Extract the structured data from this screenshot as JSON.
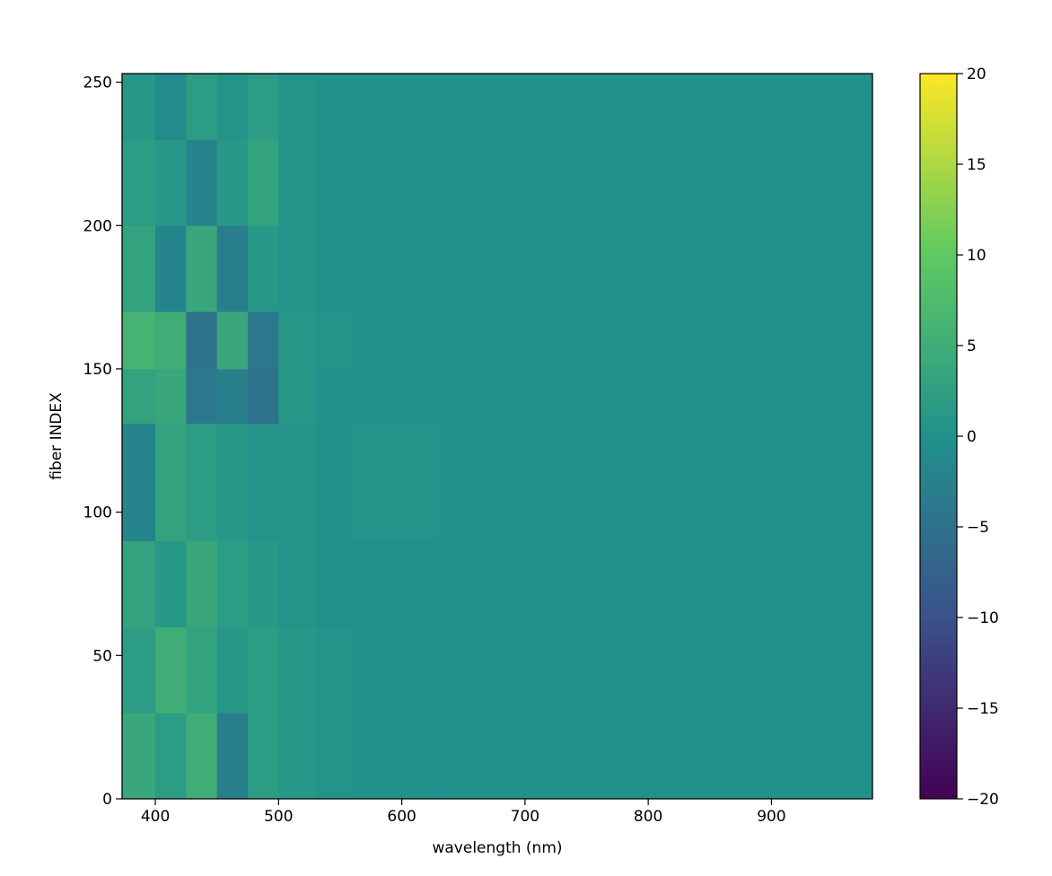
{
  "chart_data": {
    "type": "heatmap",
    "xlabel": "wavelength (nm)",
    "ylabel": "fiber INDEX",
    "xlim": [
      373,
      982
    ],
    "ylim": [
      0,
      253
    ],
    "xticks": [
      400,
      500,
      600,
      700,
      800,
      900
    ],
    "yticks": [
      0,
      50,
      100,
      150,
      200,
      250
    ],
    "xbins": [
      373,
      400,
      425,
      450,
      475,
      500,
      530,
      560,
      630,
      982
    ],
    "ybins": [
      0,
      30,
      60,
      90,
      131,
      150,
      170,
      200,
      230,
      253
    ],
    "z": [
      [
        4,
        2,
        5,
        -3,
        2,
        1,
        0.5,
        0,
        0
      ],
      [
        2,
        5,
        3,
        1,
        2,
        1,
        0.5,
        0,
        0
      ],
      [
        3,
        1,
        4,
        2,
        1,
        0.5,
        0,
        0,
        0
      ],
      [
        -2,
        3,
        2,
        1,
        0.5,
        0.5,
        0,
        0.5,
        0
      ],
      [
        3,
        4,
        -4,
        -3,
        -5,
        1,
        0,
        0,
        0
      ],
      [
        6,
        5,
        -5,
        4,
        -4,
        1,
        0.5,
        0,
        0
      ],
      [
        3,
        -2,
        4,
        -3,
        1,
        0.5,
        0,
        0,
        0
      ],
      [
        2,
        1,
        -2,
        1,
        3,
        0.5,
        0,
        0,
        0
      ],
      [
        1,
        -1,
        2,
        0.5,
        2,
        0.5,
        0,
        0,
        0
      ]
    ],
    "colormap": [
      "#440154",
      "#3b528b",
      "#21918c",
      "#5ec962",
      "#fde725"
    ],
    "clim": [
      -20,
      20
    ],
    "cticks": [
      {
        "value": -20,
        "label": "−20"
      },
      {
        "value": -15,
        "label": "−15"
      },
      {
        "value": -10,
        "label": "−10"
      },
      {
        "value": -5,
        "label": "−5"
      },
      0,
      5,
      10,
      15,
      20
    ]
  }
}
